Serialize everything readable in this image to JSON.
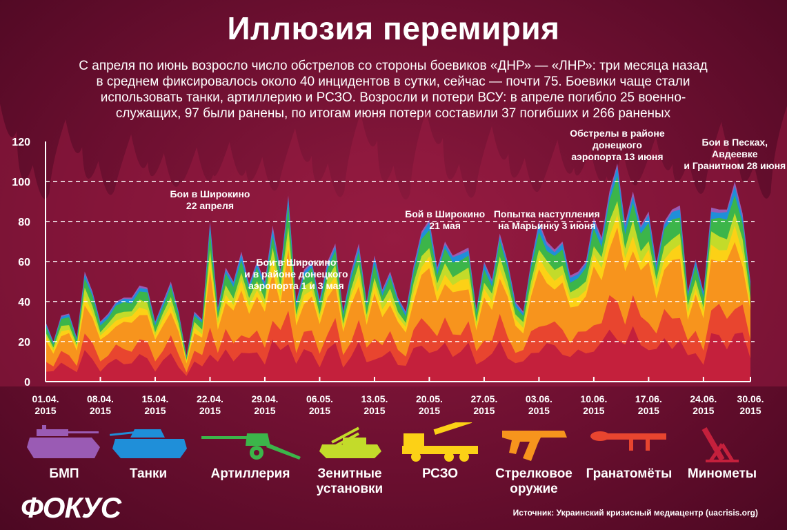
{
  "title": "Иллюзия перемирия",
  "subtitle": [
    "С апреля по июнь возросло число обстрелов со стороны боевиков «ДНР» — «ЛНР»: три месяца назад",
    "в среднем фиксировалось около 40 инцидентов в сутки, сейчас — почти 75. Боевики чаще стали",
    "использовать танки, артиллерию и РСЗО. Возросли и потери ВСУ: в апреле погибло 25 военно-",
    "служащих, 97 были ранены, по итогам июня потери составили 37 погибших и 266 раненых"
  ],
  "logo": "ФОКУС",
  "source": "Источник: Украинский кризисный медиацентр (uacrisis.org)",
  "legend": [
    {
      "label": "БМП",
      "color": "#9a5bb4",
      "icon": "bmp-icon"
    },
    {
      "label": "Танки",
      "color": "#1f8fd9",
      "icon": "tank-icon"
    },
    {
      "label": "Артиллерия",
      "color": "#3cb54a",
      "icon": "artillery-icon"
    },
    {
      "label": "Зенитные установки",
      "color": "#c3db2a",
      "icon": "anti-aircraft-icon"
    },
    {
      "label": "РСЗО",
      "color": "#fcd116",
      "icon": "rszo-icon"
    },
    {
      "label": "Стрелковое оружие",
      "color": "#f7941d",
      "icon": "rifle-icon"
    },
    {
      "label": "Гранатомёты",
      "color": "#e8452f",
      "icon": "grenade-launcher-icon"
    },
    {
      "label": "Минометы",
      "color": "#c4203c",
      "icon": "mortar-icon"
    }
  ],
  "chart_data": {
    "type": "area",
    "stacked": true,
    "ylim": [
      0,
      120
    ],
    "yticks": [
      0,
      20,
      40,
      60,
      80,
      100,
      120
    ],
    "grid": true,
    "x_tick_labels": [
      "01.04.2015",
      "08.04.2015",
      "15.04.2015",
      "22.04.2015",
      "29.04.2015",
      "06.05.2015",
      "13.05.2015",
      "20.05.2015",
      "27.05.2015",
      "03.06.2015",
      "10.06.2015",
      "17.06.2015",
      "24.06.2015",
      "30.06.2015"
    ],
    "x_tick_day_index": [
      0,
      7,
      14,
      21,
      28,
      35,
      42,
      49,
      56,
      63,
      70,
      77,
      84,
      90
    ],
    "series_names": [
      "Минометы",
      "Гранатомёты",
      "Стрелковое оружие",
      "РСЗО",
      "Зенитные установки",
      "Артиллерия",
      "Танки",
      "БМП"
    ],
    "series_colors": [
      "#c4203c",
      "#e8452f",
      "#f7941d",
      "#fcd116",
      "#c3db2a",
      "#3cb54a",
      "#1f8fd9",
      "#9a5bb4"
    ],
    "totals": [
      30,
      20,
      33,
      34,
      22,
      55,
      45,
      30,
      34,
      40,
      42,
      42,
      48,
      47,
      30,
      40,
      50,
      35,
      13,
      35,
      31,
      80,
      37,
      57,
      50,
      65,
      49,
      60,
      50,
      78,
      56,
      93,
      40,
      56,
      60,
      41,
      60,
      69,
      35,
      55,
      69,
      40,
      63,
      46,
      55,
      42,
      35,
      58,
      75,
      81,
      57,
      70,
      63,
      65,
      67,
      36,
      60,
      51,
      74,
      60,
      40,
      35,
      60,
      80,
      70,
      66,
      70,
      53,
      55,
      60,
      82,
      72,
      95,
      109,
      79,
      95,
      78,
      85,
      59,
      80,
      86,
      88,
      45,
      61,
      45,
      87,
      86,
      86,
      100,
      84,
      50
    ],
    "annotations": [
      {
        "day": 21,
        "lines": [
          "Бои в Широкино",
          "22 апреля"
        ]
      },
      {
        "day": 32,
        "lines": [
          "Бои в Широкино",
          "и в районе донецкого",
          "аэропорта 1 и 3 мая"
        ]
      },
      {
        "day": 51,
        "lines": [
          "Бой в Широкино",
          "21 мая"
        ]
      },
      {
        "day": 64,
        "lines": [
          "Попытка наступления",
          "на Марьинку 3 июня"
        ]
      },
      {
        "day": 73,
        "lines": [
          "Обстрелы в районе",
          "донецкого",
          "аэропорта 13 июня"
        ]
      },
      {
        "day": 88,
        "lines": [
          "Бои в Песках,",
          "Авдеевке",
          "и Гранитном 28 июня"
        ]
      }
    ]
  }
}
